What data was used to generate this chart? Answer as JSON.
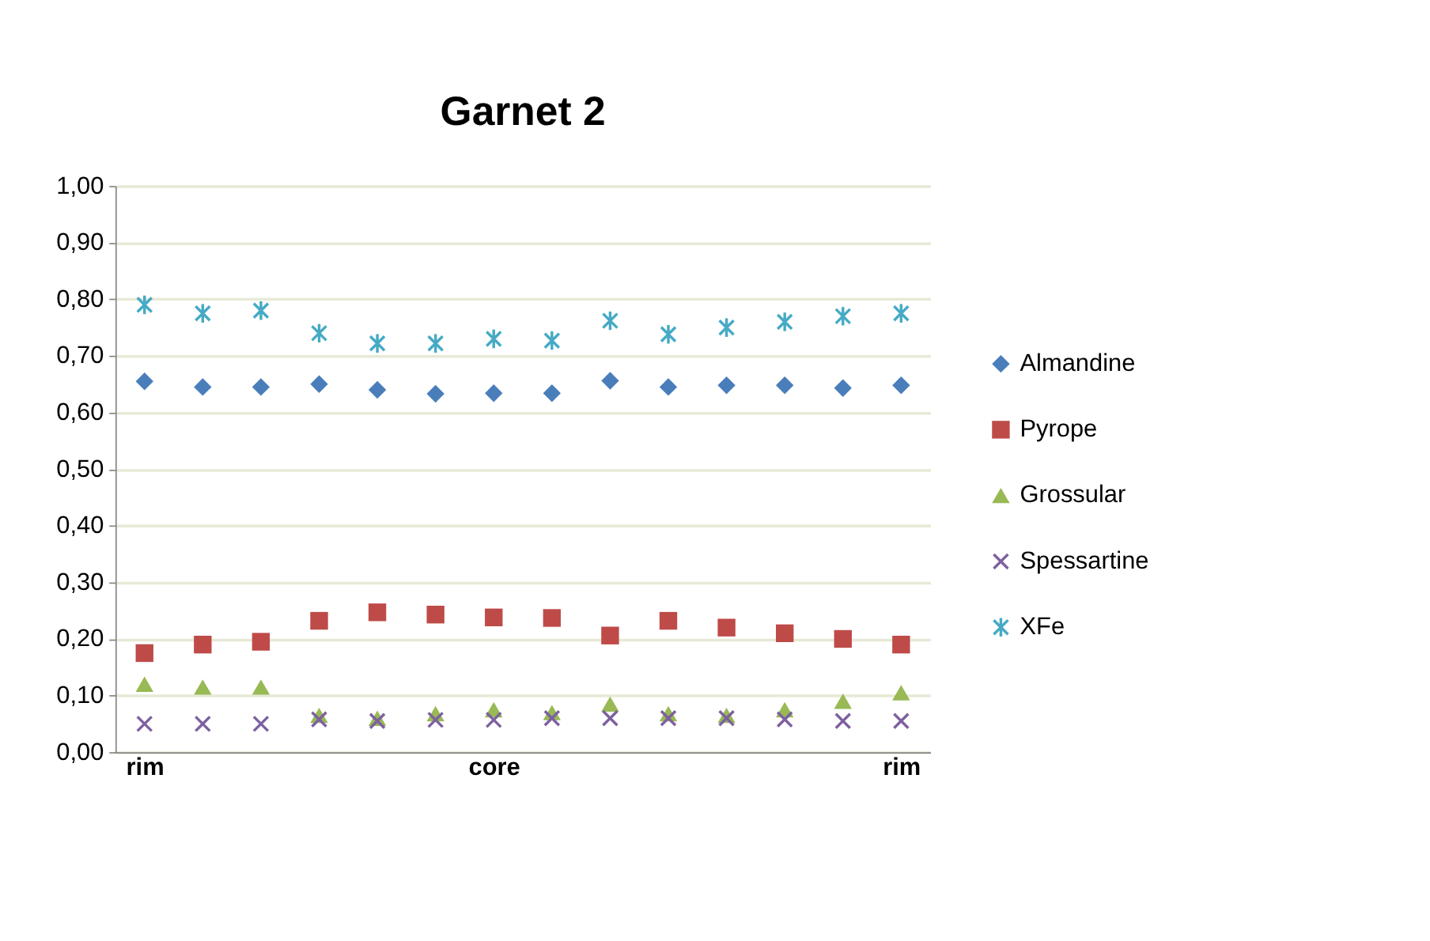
{
  "chart_data": {
    "type": "scatter",
    "title": "Garnet 2",
    "categories": [
      "rim",
      null,
      null,
      null,
      null,
      null,
      "core",
      null,
      null,
      null,
      null,
      null,
      null,
      "rim"
    ],
    "ylim": [
      0,
      1
    ],
    "yticks": [
      {
        "value": 0,
        "label": "0,00"
      },
      {
        "value": 0.1,
        "label": "0,10"
      },
      {
        "value": 0.2,
        "label": "0,20"
      },
      {
        "value": 0.3,
        "label": "0,30"
      },
      {
        "value": 0.4,
        "label": "0,40"
      },
      {
        "value": 0.5,
        "label": "0,50"
      },
      {
        "value": 0.6,
        "label": "0,60"
      },
      {
        "value": 0.7,
        "label": "0,70"
      },
      {
        "value": 0.8,
        "label": "0,80"
      },
      {
        "value": 0.9,
        "label": "0,90"
      },
      {
        "value": 1,
        "label": "1,00"
      }
    ],
    "grid": "y",
    "legend": "right",
    "series": [
      {
        "name": "Almandine",
        "color": "#4a7ebb",
        "marker": "diamond",
        "values": [
          0.655,
          0.645,
          0.645,
          0.65,
          0.64,
          0.633,
          0.634,
          0.634,
          0.656,
          0.645,
          0.648,
          0.648,
          0.643,
          0.648
        ]
      },
      {
        "name": "Pyrope",
        "color": "#be4b48",
        "marker": "square",
        "values": [
          0.175,
          0.19,
          0.195,
          0.232,
          0.247,
          0.243,
          0.238,
          0.237,
          0.206,
          0.232,
          0.22,
          0.21,
          0.2,
          0.19
        ]
      },
      {
        "name": "Grossular",
        "color": "#98b954",
        "marker": "triangle",
        "values": [
          0.12,
          0.115,
          0.115,
          0.065,
          0.06,
          0.068,
          0.075,
          0.07,
          0.085,
          0.068,
          0.065,
          0.075,
          0.09,
          0.105
        ]
      },
      {
        "name": "Spessartine",
        "color": "#7d60a0",
        "marker": "cross",
        "values": [
          0.05,
          0.05,
          0.05,
          0.058,
          0.055,
          0.057,
          0.057,
          0.06,
          0.06,
          0.06,
          0.06,
          0.058,
          0.055,
          0.055
        ]
      },
      {
        "name": "XFe",
        "color": "#46aac5",
        "values": [
          0.79,
          0.775,
          0.78,
          0.74,
          0.722,
          0.722,
          0.73,
          0.727,
          0.762,
          0.738,
          0.75,
          0.76,
          0.77,
          0.775
        ]
      }
    ]
  }
}
